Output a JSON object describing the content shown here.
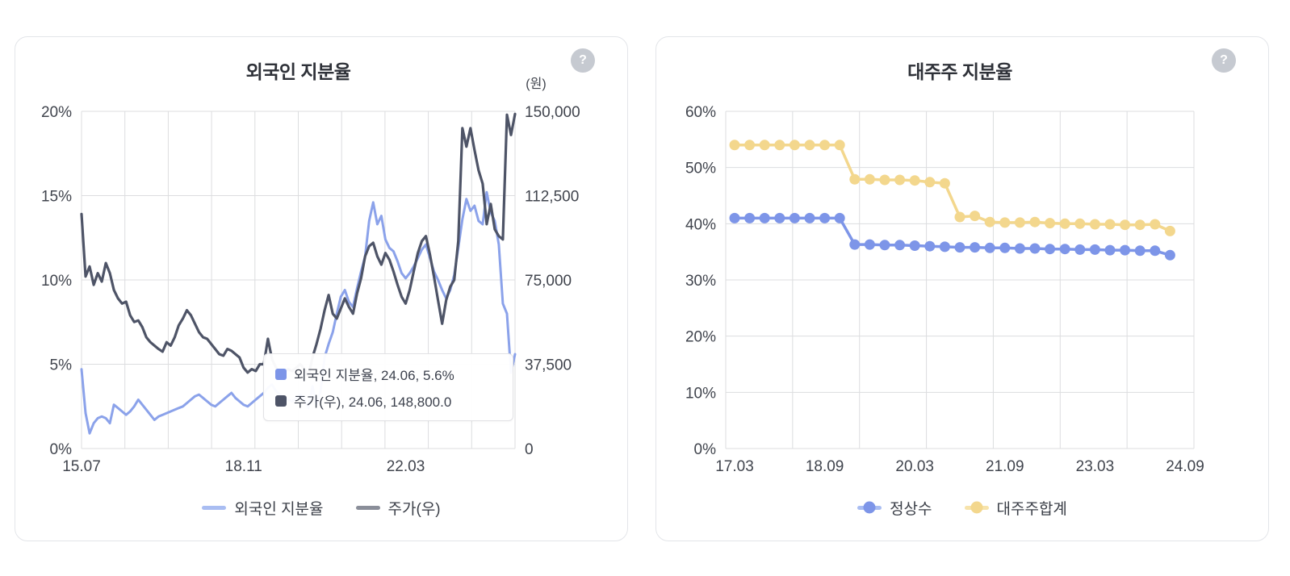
{
  "cards": [
    {
      "help_icon": "?"
    },
    {
      "help_icon": "?"
    }
  ],
  "theme": {
    "grid_color": "#dcdddf",
    "tick_color": "#40444d",
    "title_color": "#2e3138",
    "card_border": "#e3e5e9",
    "help_circle": "#c6cad1"
  },
  "chart_data": [
    {
      "type": "line",
      "title": "외국인 지분율",
      "unit_label": "(원)",
      "grid": true,
      "legend_position": "bottom",
      "x": [
        "15.07",
        "15.08",
        "15.09",
        "15.10",
        "15.11",
        "15.12",
        "16.01",
        "16.02",
        "16.03",
        "16.04",
        "16.05",
        "16.06",
        "16.07",
        "16.08",
        "16.09",
        "16.10",
        "16.11",
        "16.12",
        "17.01",
        "17.02",
        "17.03",
        "17.04",
        "17.05",
        "17.06",
        "17.07",
        "17.08",
        "17.09",
        "17.10",
        "17.11",
        "17.12",
        "18.01",
        "18.02",
        "18.03",
        "18.04",
        "18.05",
        "18.06",
        "18.07",
        "18.08",
        "18.09",
        "18.10",
        "18.11",
        "18.12",
        "19.01",
        "19.02",
        "19.03",
        "19.04",
        "19.05",
        "19.06",
        "19.07",
        "19.08",
        "19.09",
        "19.10",
        "19.11",
        "19.12",
        "20.01",
        "20.02",
        "20.03",
        "20.04",
        "20.05",
        "20.06",
        "20.07",
        "20.08",
        "20.09",
        "20.10",
        "20.11",
        "20.12",
        "21.01",
        "21.02",
        "21.03",
        "21.04",
        "21.05",
        "21.06",
        "21.07",
        "21.08",
        "21.09",
        "21.10",
        "21.11",
        "21.12",
        "22.01",
        "22.02",
        "22.03",
        "22.04",
        "22.05",
        "22.06",
        "22.07",
        "22.08",
        "22.09",
        "22.10",
        "22.11",
        "22.12",
        "23.01",
        "23.02",
        "23.03",
        "23.04",
        "23.05",
        "23.06",
        "23.07",
        "23.08",
        "23.09",
        "23.10",
        "23.11",
        "23.12",
        "24.01",
        "24.02",
        "24.03",
        "24.04",
        "24.05",
        "24.06"
      ],
      "x_ticks": [
        {
          "label": "15.07",
          "pos": 0
        },
        {
          "label": "18.11",
          "pos": 40
        },
        {
          "label": "22.03",
          "pos": 80
        }
      ],
      "left_axis": {
        "min": 0,
        "max": 20,
        "tick_labels": [
          "20%",
          "15%",
          "10%",
          "5%",
          "0%"
        ]
      },
      "right_axis": {
        "min": 0,
        "max": 150000,
        "tick_labels": [
          "150,000",
          "112,500",
          "75,000",
          "37,500",
          "0"
        ]
      },
      "series": [
        {
          "name": "외국인 지분율",
          "axis": "left",
          "color": "#8ba2ea",
          "width": 3,
          "values": [
            4.7,
            2.1,
            0.9,
            1.5,
            1.8,
            1.9,
            1.8,
            1.5,
            2.6,
            2.4,
            2.2,
            2.0,
            2.2,
            2.5,
            2.9,
            2.6,
            2.3,
            2.0,
            1.7,
            1.9,
            2.0,
            2.1,
            2.2,
            2.3,
            2.4,
            2.5,
            2.7,
            2.9,
            3.1,
            3.2,
            3.0,
            2.8,
            2.6,
            2.5,
            2.7,
            2.9,
            3.1,
            3.3,
            3.0,
            2.8,
            2.6,
            2.5,
            2.7,
            2.9,
            3.1,
            3.3,
            3.6,
            3.8,
            3.4,
            3.2,
            3.0,
            2.9,
            2.8,
            3.0,
            3.2,
            2.9,
            2.4,
            3.7,
            2.6,
            3.4,
            5.4,
            6.2,
            6.9,
            8.0,
            9.0,
            9.4,
            8.7,
            8.4,
            9.5,
            10.5,
            11.4,
            13.5,
            14.6,
            13.3,
            13.8,
            12.4,
            11.9,
            11.7,
            11.1,
            10.4,
            10.1,
            10.4,
            10.8,
            11.3,
            11.8,
            12.1,
            11.3,
            10.5,
            10.0,
            9.4,
            8.9,
            9.4,
            10.3,
            11.9,
            13.6,
            14.8,
            14.1,
            14.4,
            13.5,
            13.3,
            15.2,
            14.0,
            13.5,
            12.1,
            8.6,
            8.0,
            4.5,
            5.6
          ]
        },
        {
          "name": "주가(우)",
          "axis": "right",
          "color": "#4e5467",
          "width": 3.2,
          "values": [
            104300,
            76500,
            81000,
            72800,
            78000,
            74300,
            82500,
            78000,
            70500,
            66800,
            64500,
            65300,
            59300,
            56300,
            57000,
            54000,
            49500,
            47300,
            45800,
            44300,
            43100,
            47300,
            45800,
            49500,
            54800,
            57800,
            61500,
            59300,
            55500,
            51800,
            49500,
            48800,
            46500,
            44300,
            42000,
            41300,
            44300,
            43500,
            42000,
            40500,
            36000,
            33800,
            35300,
            34500,
            37500,
            37500,
            48800,
            39800,
            36000,
            33000,
            34500,
            35300,
            34500,
            36000,
            37500,
            35300,
            32300,
            40500,
            46500,
            53300,
            61500,
            68300,
            60000,
            57800,
            62300,
            66800,
            63000,
            60000,
            69000,
            75800,
            85500,
            90000,
            91500,
            85500,
            81800,
            87000,
            84000,
            78800,
            72800,
            67500,
            64500,
            70500,
            78800,
            87000,
            92300,
            94500,
            86300,
            76500,
            66000,
            55500,
            66000,
            72000,
            75000,
            92300,
            142500,
            134300,
            142500,
            132800,
            123800,
            117800,
            99800,
            108800,
            97500,
            94500,
            93000,
            148500,
            139500,
            148800
          ]
        }
      ],
      "tooltip": {
        "rows": [
          {
            "color": "#7d95e8",
            "text": "외국인 지분율, 24.06, 5.6%"
          },
          {
            "color": "#4e5467",
            "text": "주가(우), 24.06, 148,800.0"
          }
        ]
      },
      "legend": [
        {
          "label": "외국인 지분율",
          "line_color": "#a9bdf2"
        },
        {
          "label": "주가(우)",
          "line_color": "#8a8e99"
        }
      ]
    },
    {
      "type": "line",
      "title": "대주주 지분율",
      "grid": true,
      "legend_position": "bottom",
      "x": [
        "17.03",
        "17.06",
        "17.09",
        "17.12",
        "18.03",
        "18.06",
        "18.09",
        "18.12",
        "19.03",
        "19.06",
        "19.09",
        "19.12",
        "20.03",
        "20.06",
        "20.09",
        "20.12",
        "21.03",
        "21.06",
        "21.09",
        "21.12",
        "22.03",
        "22.06",
        "22.09",
        "22.12",
        "23.03",
        "23.06",
        "23.09",
        "23.12",
        "24.03",
        "24.06"
      ],
      "x_ticks": [
        {
          "label": "17.03",
          "pos": 0
        },
        {
          "label": "18.09",
          "pos": 6
        },
        {
          "label": "20.03",
          "pos": 12
        },
        {
          "label": "21.09",
          "pos": 18
        },
        {
          "label": "23.03",
          "pos": 24
        },
        {
          "label": "24.09",
          "pos": 30
        }
      ],
      "left_axis": {
        "min": 0,
        "max": 60,
        "tick_labels": [
          "60%",
          "50%",
          "40%",
          "30%",
          "20%",
          "10%",
          "0%"
        ]
      },
      "series": [
        {
          "name": "정상수",
          "axis": "left",
          "color": "#7d95e8",
          "width": 3.5,
          "dots": true,
          "values": [
            41,
            41,
            41,
            41,
            41,
            41,
            41,
            41,
            36.3,
            36.3,
            36.2,
            36.2,
            36.1,
            36.0,
            35.9,
            35.8,
            35.8,
            35.7,
            35.7,
            35.6,
            35.6,
            35.5,
            35.5,
            35.4,
            35.4,
            35.3,
            35.3,
            35.2,
            35.2,
            34.4
          ]
        },
        {
          "name": "대주주합계",
          "axis": "left",
          "color": "#f3d78d",
          "width": 3.5,
          "dots": true,
          "values": [
            54,
            54,
            54,
            54,
            54,
            54,
            54,
            54,
            47.9,
            47.9,
            47.8,
            47.8,
            47.7,
            47.4,
            47.2,
            41.2,
            41.4,
            40.3,
            40.2,
            40.2,
            40.3,
            40.1,
            40.0,
            40.0,
            39.9,
            39.9,
            39.8,
            39.8,
            39.9,
            38.7
          ]
        }
      ],
      "legend": [
        {
          "label": "정상수",
          "line_color": "#a9bdf2",
          "dot_color": "#7d95e8"
        },
        {
          "label": "대주주합계",
          "line_color": "#f7e3ab",
          "dot_color": "#f3d78d"
        }
      ]
    }
  ]
}
